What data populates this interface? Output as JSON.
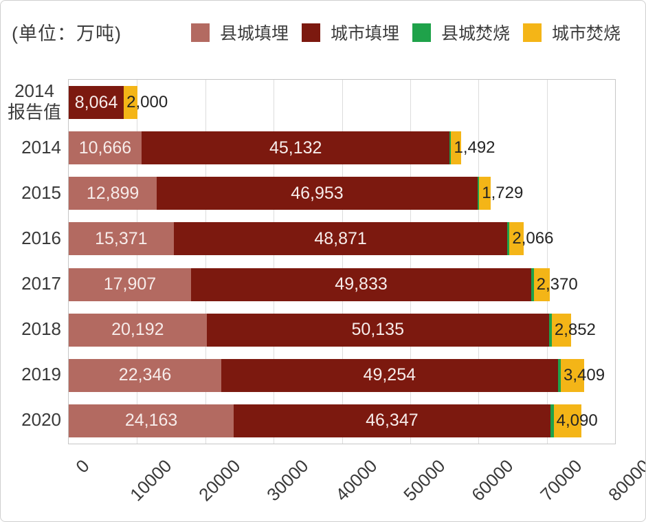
{
  "unit_label": "(单位：万吨)",
  "legend": [
    {
      "label": "县城填埋",
      "color": "#b36a61"
    },
    {
      "label": "城市填埋",
      "color": "#7c190f"
    },
    {
      "label": "县城焚烧",
      "color": "#1fa24a"
    },
    {
      "label": "城市焚烧",
      "color": "#f4b517"
    }
  ],
  "chart_data": {
    "type": "bar",
    "orientation": "horizontal",
    "stacked": true,
    "title": "(单位：万吨)",
    "categories": [
      "2014 报告值",
      "2014",
      "2015",
      "2016",
      "2017",
      "2018",
      "2019",
      "2020"
    ],
    "series": [
      {
        "name": "县城填埋",
        "color": "#b36a61",
        "values": [
          0,
          10666,
          12899,
          15371,
          17907,
          20192,
          22346,
          24163
        ]
      },
      {
        "name": "城市填埋",
        "color": "#7c190f",
        "values": [
          8064,
          45132,
          46953,
          48871,
          49833,
          50135,
          49254,
          46347
        ]
      },
      {
        "name": "县城焚烧",
        "color": "#1fa24a",
        "estimated": true,
        "values": [
          0,
          200,
          250,
          300,
          350,
          400,
          450,
          500
        ]
      },
      {
        "name": "城市焚烧",
        "color": "#f4b517",
        "values": [
          2000,
          1492,
          1729,
          2066,
          2370,
          2852,
          3409,
          4090
        ]
      }
    ],
    "xlim": [
      0,
      80000
    ],
    "x_ticks": [
      "0",
      "10000",
      "20000",
      "30000",
      "40000",
      "50000",
      "60000",
      "70000",
      "80000"
    ],
    "grid": true,
    "legend_position": "top"
  },
  "rows": [
    {
      "category_lines": [
        "2014",
        "报告值"
      ],
      "county_landfill_label": "",
      "city_landfill_label": "8,064",
      "city_burn_label": "2,000"
    },
    {
      "category_lines": [
        "2014"
      ],
      "county_landfill_label": "10,666",
      "city_landfill_label": "45,132",
      "city_burn_label": "1,492"
    },
    {
      "category_lines": [
        "2015"
      ],
      "county_landfill_label": "12,899",
      "city_landfill_label": "46,953",
      "city_burn_label": "1,729"
    },
    {
      "category_lines": [
        "2016"
      ],
      "county_landfill_label": "15,371",
      "city_landfill_label": "48,871",
      "city_burn_label": "2,066"
    },
    {
      "category_lines": [
        "2017"
      ],
      "county_landfill_label": "17,907",
      "city_landfill_label": "49,833",
      "city_burn_label": "2,370"
    },
    {
      "category_lines": [
        "2018"
      ],
      "county_landfill_label": "20,192",
      "city_landfill_label": "50,135",
      "city_burn_label": "2,852"
    },
    {
      "category_lines": [
        "2019"
      ],
      "county_landfill_label": "22,346",
      "city_landfill_label": "49,254",
      "city_burn_label": "3,409"
    },
    {
      "category_lines": [
        "2020"
      ],
      "county_landfill_label": "24,163",
      "city_landfill_label": "46,347",
      "city_burn_label": "4,090"
    }
  ],
  "colors": {
    "grid": "#dcdcdc",
    "plot_border": "#c6c6c6",
    "axis_text": "#3a3a3a",
    "bar_text_light": "#f7ecea",
    "bar_text_dark": "#242424"
  }
}
